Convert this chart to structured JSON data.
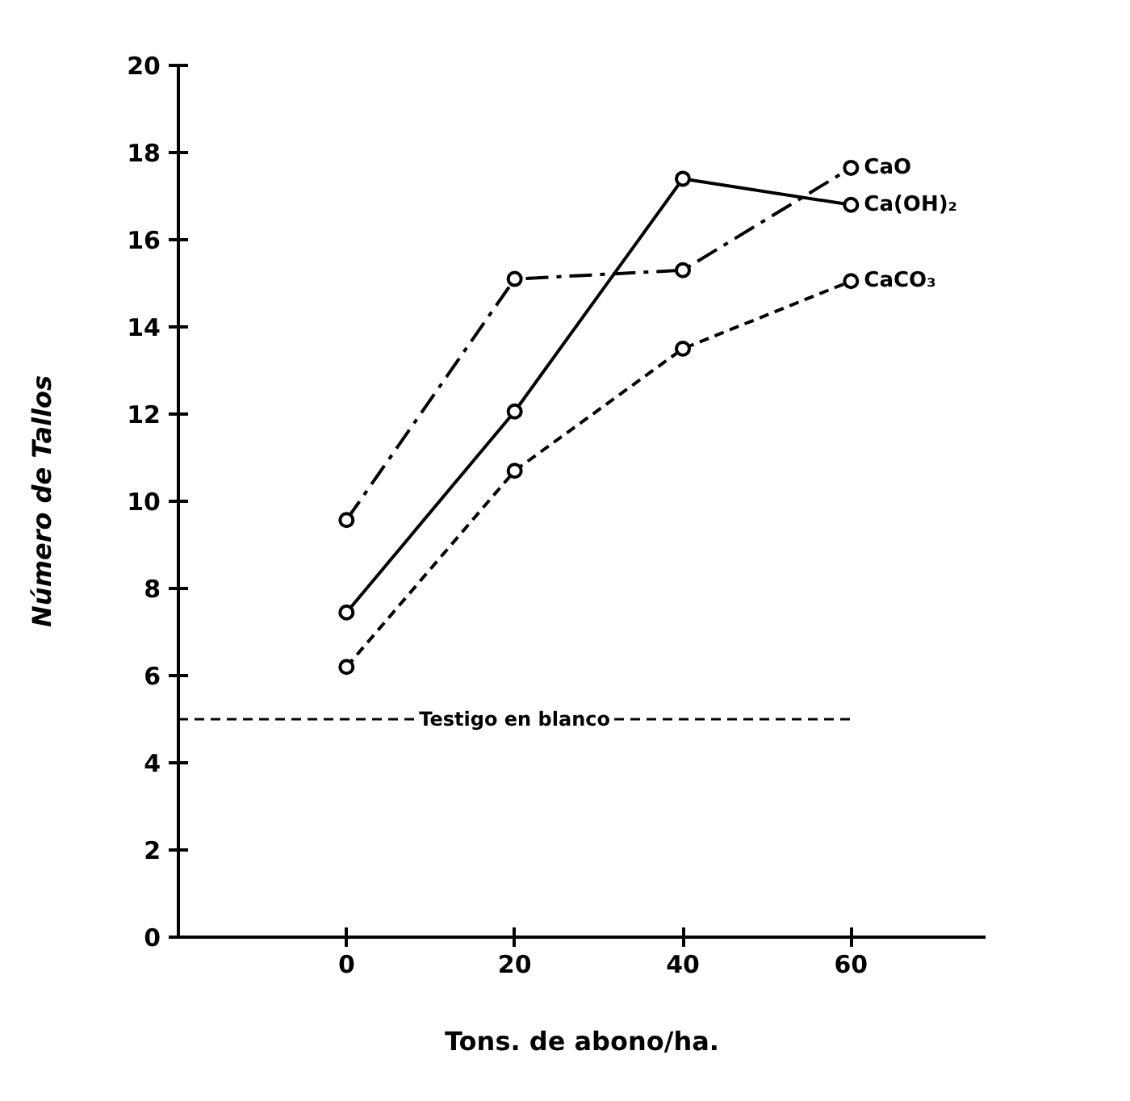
{
  "chart_data": {
    "type": "line",
    "xlabel": "Tons. de abono/ha.",
    "ylabel": "Número de Tallos",
    "x": [
      0,
      20,
      40,
      60
    ],
    "series": [
      {
        "name": "CaO",
        "color": "#000000",
        "line_style": "dashdot",
        "values": [
          9.57,
          15.1,
          15.3,
          17.65
        ]
      },
      {
        "name": "Ca(OH)₂",
        "color": "#000000",
        "line_style": "solid",
        "values": [
          7.45,
          12.06,
          17.4,
          16.8
        ]
      },
      {
        "name": "CaCO₃",
        "color": "#000000",
        "line_style": "dashed",
        "values": [
          6.2,
          10.7,
          13.5,
          15.05
        ]
      }
    ],
    "xlim": [
      -20,
      76
    ],
    "ylim": [
      0,
      20
    ],
    "xticks": [
      0,
      20,
      40,
      60
    ],
    "yticks": [
      0,
      2,
      4,
      6,
      8,
      10,
      12,
      14,
      16,
      18,
      20
    ],
    "ref_lines": [
      {
        "axis": "y",
        "value": 5,
        "label": "Testigo en blanco",
        "line_style": "dashed",
        "color": "#000000"
      }
    ],
    "marker": "circle",
    "grid": false
  }
}
